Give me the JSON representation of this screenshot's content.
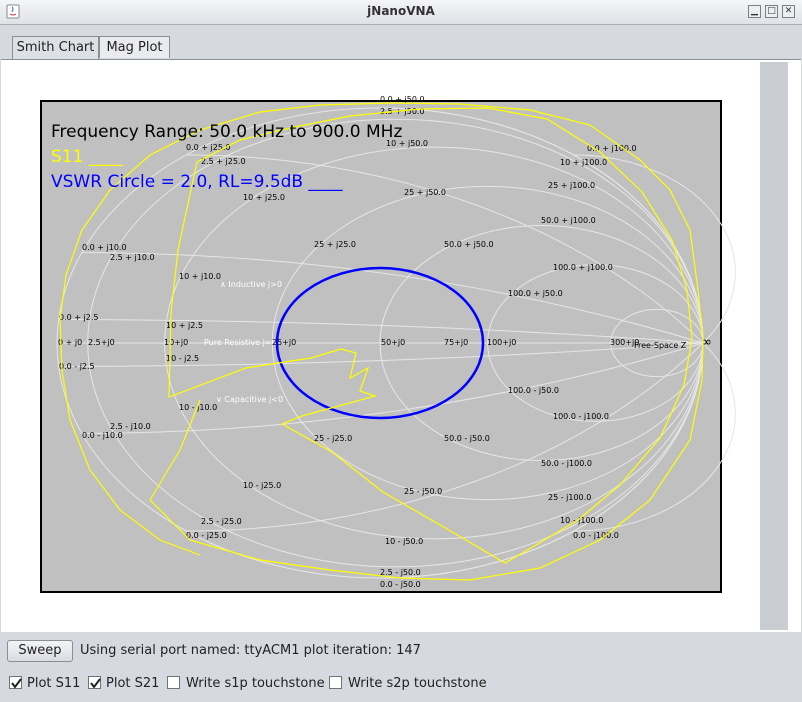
{
  "window": {
    "title": "jNanoVNA"
  },
  "tabs": [
    {
      "label": "Smith Chart",
      "active": true
    },
    {
      "label": "Mag Plot",
      "active": false
    }
  ],
  "chart": {
    "info_lines": [
      {
        "text": "Frequency Range: 50.0 kHz to 900.0 MHz",
        "color": "#000000"
      },
      {
        "text": "S11 ____",
        "color": "#ffff00"
      },
      {
        "text": "VSWR Circle = 2.0, RL=9.5dB  ____",
        "color": "#0000ff"
      }
    ],
    "labels": [
      {
        "t": "0.0 + j50.0"
      },
      {
        "t": "2.5 + j50.0"
      },
      {
        "t": "10 + j50.0"
      },
      {
        "t": "0.0 + j25.0"
      },
      {
        "t": "2.5 + j25.0"
      },
      {
        "t": "25 + j50.0"
      },
      {
        "t": "0.0 + j100.0"
      },
      {
        "t": "10 + j100.0"
      },
      {
        "t": "25 + j100.0"
      },
      {
        "t": "10 + j25.0"
      },
      {
        "t": "50.0 + j100.0"
      },
      {
        "t": "0.0 + j10.0"
      },
      {
        "t": "25 + j25.0"
      },
      {
        "t": "50.0 + j50.0"
      },
      {
        "t": "2.5 + j10.0"
      },
      {
        "t": "100.0 + j100.0"
      },
      {
        "t": "10 + j10.0"
      },
      {
        "t": "∧ Inductive j>0"
      },
      {
        "t": "100.0 + j50.0"
      },
      {
        "t": "0.0 + j2.5"
      },
      {
        "t": "10 + j2.5"
      },
      {
        "t": "0 + j0"
      },
      {
        "t": "2.5+j0"
      },
      {
        "t": "10+j0"
      },
      {
        "t": "Pure Resistive j=0"
      },
      {
        "t": "25+j0"
      },
      {
        "t": "50+j0"
      },
      {
        "t": "75+j0"
      },
      {
        "t": "100+j0"
      },
      {
        "t": "300+j0"
      },
      {
        "t": "Free-Space Z"
      },
      {
        "t": "∞"
      },
      {
        "t": "10 - j2.5"
      },
      {
        "t": "0.0 - j2.5"
      },
      {
        "t": "100.0 - j50.0"
      },
      {
        "t": "10 - j10.0"
      },
      {
        "t": "∨ Capacitive j<0"
      },
      {
        "t": "100.0 - j100.0"
      },
      {
        "t": "2.5 - j10.0"
      },
      {
        "t": "0.0 - j10.0"
      },
      {
        "t": "25 - j25.0"
      },
      {
        "t": "50.0 - j50.0"
      },
      {
        "t": "50.0 - j100.0"
      },
      {
        "t": "10 - j25.0"
      },
      {
        "t": "25 - j50.0"
      },
      {
        "t": "25 - j100.0"
      },
      {
        "t": "2.5 - j25.0"
      },
      {
        "t": "10 - j100.0"
      },
      {
        "t": "0.0 - j25.0"
      },
      {
        "t": "0.0 - j100.0"
      },
      {
        "t": "10 - j50.0"
      },
      {
        "t": "2.5 - j50.0"
      },
      {
        "t": "0.0 - j50.0"
      }
    ],
    "colors": {
      "grid": "#e6e6e6",
      "s11": "#ffff00",
      "vswr": "#0000ff",
      "plot_bg": "#c0c0c0"
    }
  },
  "bottom": {
    "sweep_label": "Sweep",
    "status_text": "Using serial port named: ttyACM1  plot iteration: 147",
    "options": [
      {
        "label": "Plot S11",
        "checked": true
      },
      {
        "label": "Plot S21",
        "checked": true
      },
      {
        "label": "Write s1p touchstone",
        "checked": false
      },
      {
        "label": "Write s2p touchstone",
        "checked": false
      }
    ]
  }
}
